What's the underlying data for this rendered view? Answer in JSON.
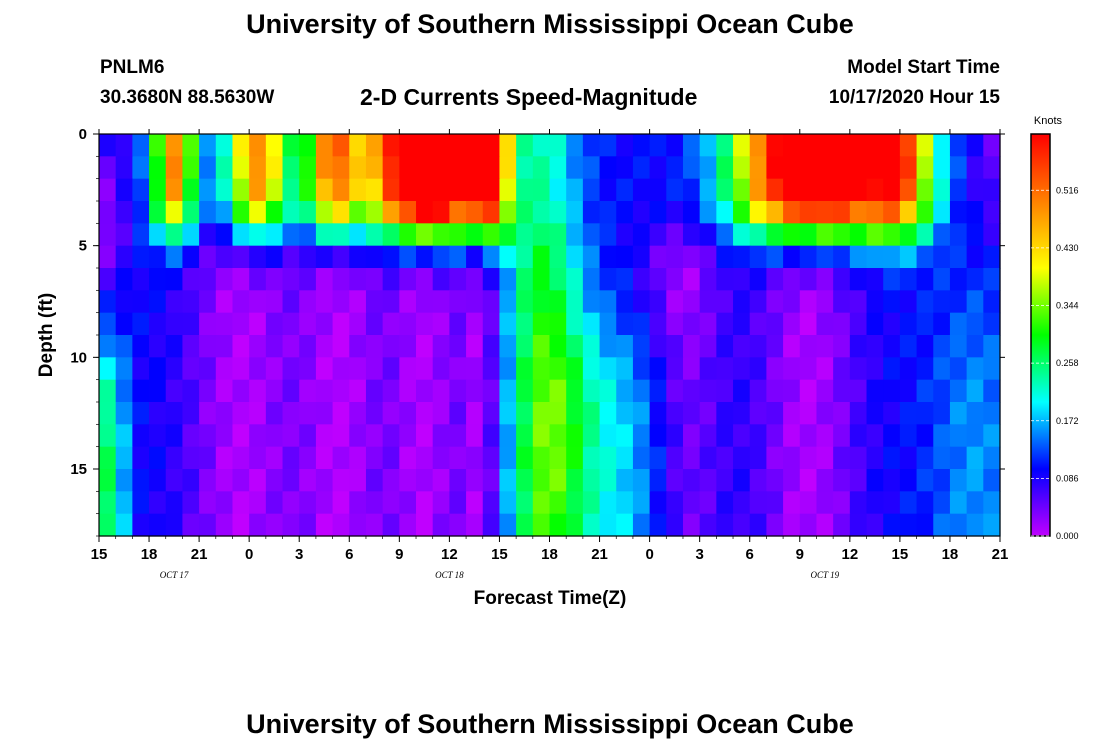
{
  "page": {
    "title_top": "University of Southern Mississippi Ocean Cube",
    "title_bottom": "University of Southern Mississippi Ocean Cube",
    "station_id": "PNLM6",
    "station_coords": "30.3680N 88.5630W",
    "subtitle": "2-D Currents Speed-Magnitude",
    "model_start_label": "Model Start Time",
    "model_start_value": "10/17/2020 Hour 15"
  },
  "chart_data": {
    "type": "heatmap",
    "title": "2-D Currents Speed-Magnitude",
    "xlabel": "Forecast Time(Z)",
    "ylabel": "Depth (ft)",
    "x_range_hours": [
      0,
      54
    ],
    "ylim": [
      0,
      18
    ],
    "x_ticks": [
      {
        "hour": 0,
        "label": "15"
      },
      {
        "hour": 3,
        "label": "18"
      },
      {
        "hour": 6,
        "label": "21"
      },
      {
        "hour": 9,
        "label": "0"
      },
      {
        "hour": 12,
        "label": "3"
      },
      {
        "hour": 15,
        "label": "6"
      },
      {
        "hour": 18,
        "label": "9"
      },
      {
        "hour": 21,
        "label": "12"
      },
      {
        "hour": 24,
        "label": "15"
      },
      {
        "hour": 27,
        "label": "18"
      },
      {
        "hour": 30,
        "label": "21"
      },
      {
        "hour": 33,
        "label": "0"
      },
      {
        "hour": 36,
        "label": "3"
      },
      {
        "hour": 39,
        "label": "6"
      },
      {
        "hour": 42,
        "label": "9"
      },
      {
        "hour": 45,
        "label": "12"
      },
      {
        "hour": 48,
        "label": "15"
      },
      {
        "hour": 51,
        "label": "18"
      },
      {
        "hour": 54,
        "label": "21"
      }
    ],
    "date_labels": [
      {
        "hour": 4.5,
        "label": "OCT 17"
      },
      {
        "hour": 21,
        "label": "OCT 18"
      },
      {
        "hour": 43.5,
        "label": "OCT 19"
      }
    ],
    "y_ticks": [
      {
        "depth": 0,
        "label": "0"
      },
      {
        "depth": 5,
        "label": "5"
      },
      {
        "depth": 10,
        "label": "10"
      },
      {
        "depth": 15,
        "label": "15"
      }
    ],
    "colorbar": {
      "units": "Knots",
      "min": 0.0,
      "max": 0.6,
      "labels": [
        {
          "value": 0.0,
          "label": "0.000"
        },
        {
          "value": 0.086,
          "label": "0.086"
        },
        {
          "value": 0.172,
          "label": "0.172"
        },
        {
          "value": 0.258,
          "label": "0.258"
        },
        {
          "value": 0.344,
          "label": "0.344"
        },
        {
          "value": 0.43,
          "label": "0.430"
        },
        {
          "value": 0.516,
          "label": "0.516"
        }
      ],
      "colors": [
        "#c000ff",
        "#0000ff",
        "#00ffff",
        "#00ff00",
        "#ffff00",
        "#ff8000",
        "#ff0000"
      ]
    },
    "rows": 18,
    "cols": 54,
    "field_description": "speed in knots sampled per hour (columns) and per foot of depth (rows)"
  }
}
